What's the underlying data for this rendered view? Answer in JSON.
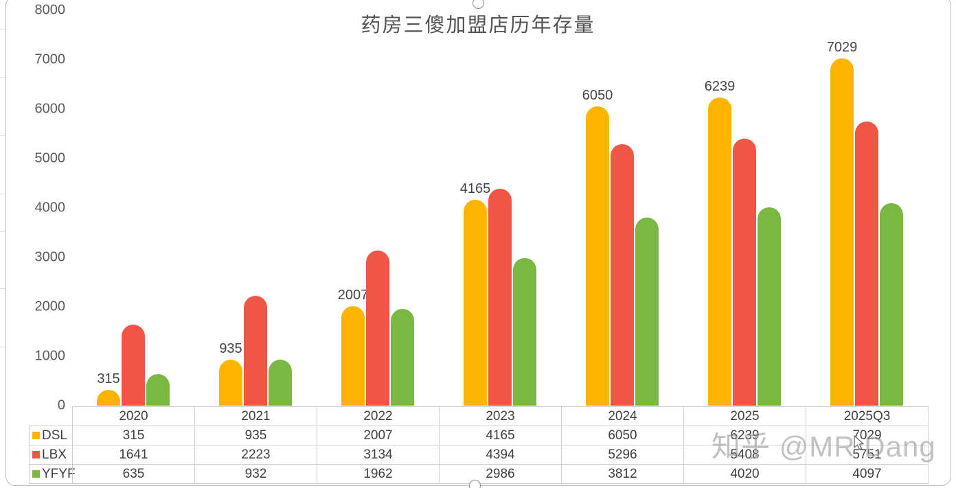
{
  "watermark_text": "知乎 @MR Dang",
  "chart_data": {
    "type": "bar",
    "title": "药房三傻加盟店历年存量",
    "categories": [
      "2020",
      "2021",
      "2022",
      "2023",
      "2024",
      "2025",
      "2025Q3"
    ],
    "series": [
      {
        "name": "DSL",
        "color": "#FFB400",
        "data_labels": true,
        "values": [
          315,
          935,
          2007,
          4165,
          6050,
          6239,
          7029
        ]
      },
      {
        "name": "LBX",
        "color": "#EF5645",
        "data_labels": false,
        "values": [
          1641,
          2223,
          3134,
          4394,
          5296,
          5408,
          5751
        ]
      },
      {
        "name": "YFYF",
        "color": "#78B843",
        "data_labels": false,
        "values": [
          635,
          932,
          1962,
          2986,
          3812,
          4020,
          4097
        ]
      }
    ],
    "ylim": [
      0,
      8000
    ],
    "ytick_step": 1000,
    "xlabel": "",
    "ylabel": "",
    "grid": false,
    "legend_position": "data-table-left",
    "has_data_table": true
  }
}
